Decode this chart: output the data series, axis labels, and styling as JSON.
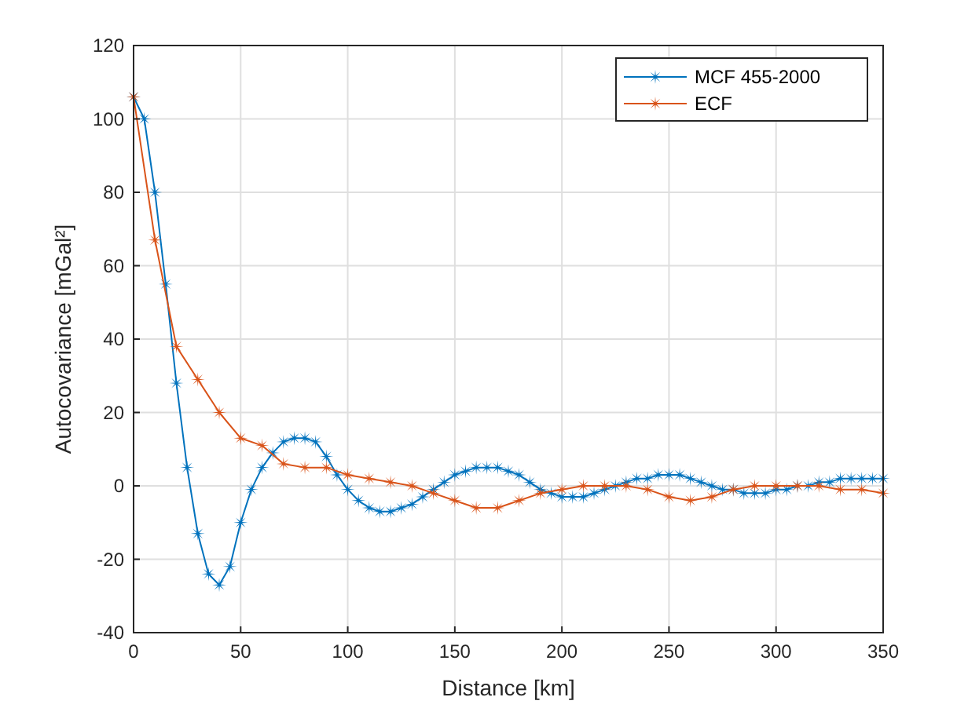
{
  "chart_data": {
    "type": "line",
    "xlabel": "Distance [km]",
    "ylabel": "Autocovariance [mGal²]",
    "xlim": [
      0,
      350
    ],
    "ylim": [
      -40,
      120
    ],
    "xticks": [
      0,
      50,
      100,
      150,
      200,
      250,
      300,
      350
    ],
    "yticks": [
      -40,
      -20,
      0,
      20,
      40,
      60,
      80,
      100,
      120
    ],
    "grid": true,
    "legend": "top right",
    "marker": "star",
    "line_style": "solid",
    "series": [
      {
        "name": "MCF 455-2000",
        "color": "#0072bd",
        "x": [
          0,
          5,
          10,
          15,
          20,
          25,
          30,
          35,
          40,
          45,
          50,
          55,
          60,
          65,
          70,
          75,
          80,
          85,
          90,
          95,
          100,
          105,
          110,
          115,
          120,
          125,
          130,
          135,
          140,
          145,
          150,
          155,
          160,
          165,
          170,
          175,
          180,
          185,
          190,
          195,
          200,
          205,
          210,
          215,
          220,
          225,
          230,
          235,
          240,
          245,
          250,
          255,
          260,
          265,
          270,
          275,
          280,
          285,
          290,
          295,
          300,
          305,
          310,
          315,
          320,
          325,
          330,
          335,
          340,
          345,
          350
        ],
        "values": [
          106,
          100,
          80,
          55,
          28,
          5,
          -13,
          -24,
          -27,
          -22,
          -10,
          -1,
          5,
          9,
          12,
          13,
          13,
          12,
          8,
          3,
          -1,
          -4,
          -6,
          -7,
          -7,
          -6,
          -5,
          -3,
          -1,
          1,
          3,
          4,
          5,
          5,
          5,
          4,
          3,
          1,
          -1,
          -2,
          -3,
          -3,
          -3,
          -2,
          -1,
          0,
          1,
          2,
          2,
          3,
          3,
          3,
          2,
          1,
          0,
          -1,
          -1,
          -2,
          -2,
          -2,
          -1,
          -1,
          0,
          0,
          1,
          1,
          2,
          2,
          2,
          2,
          2
        ]
      },
      {
        "name": "ECF",
        "color": "#d95319",
        "x": [
          0,
          10,
          20,
          30,
          40,
          50,
          60,
          70,
          80,
          90,
          100,
          110,
          120,
          130,
          140,
          150,
          160,
          170,
          180,
          190,
          200,
          210,
          220,
          230,
          240,
          250,
          260,
          270,
          280,
          290,
          300,
          310,
          320,
          330,
          340,
          350
        ],
        "values": [
          106,
          67,
          38,
          29,
          20,
          13,
          11,
          6,
          5,
          5,
          3,
          2,
          1,
          0,
          -2,
          -4,
          -6,
          -6,
          -4,
          -2,
          -1,
          0,
          0,
          0,
          -1,
          -3,
          -4,
          -3,
          -1,
          0,
          0,
          0,
          0,
          -1,
          -1,
          -2
        ]
      }
    ]
  }
}
